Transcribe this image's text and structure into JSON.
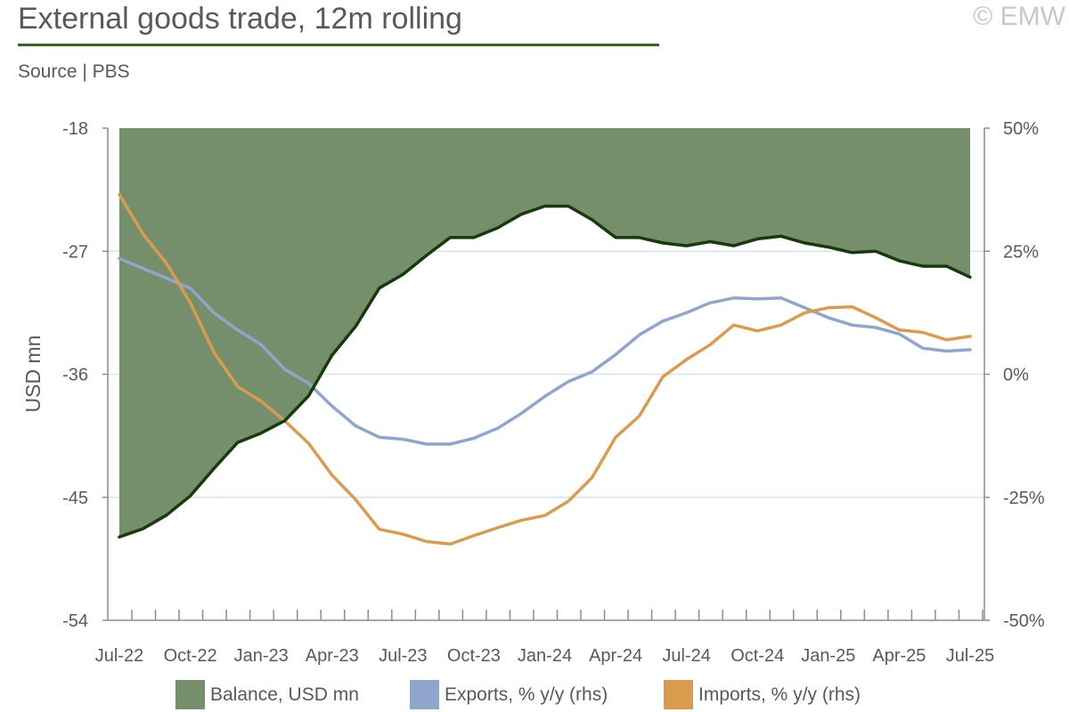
{
  "header": {
    "title": "External goods trade, 12m rolling",
    "copyright": "© EMW",
    "source": "Source | PBS"
  },
  "colors": {
    "balance_fill": "#758f6c",
    "balance_line": "#173a0d",
    "exports": "#8fa5cb",
    "imports": "#d99c4f",
    "grid": "#d6e4ec",
    "axis": "#8c8c8c",
    "title_rule": "#2e6b22"
  },
  "chart_data": {
    "type": "line",
    "title": "External goods trade, 12m rolling",
    "ylabel": "USD mn",
    "y_left_ticks": [
      "-18",
      "-27",
      "-36",
      "-45",
      "-54"
    ],
    "y_right_ticks": [
      "50%",
      "25%",
      "0%",
      "-25%",
      "-50%"
    ],
    "ylim_left": [
      -54,
      -18
    ],
    "ylim_right": [
      -50,
      50
    ],
    "x_tick_labels": [
      "Jul-22",
      "Oct-22",
      "Jan-23",
      "Apr-23",
      "Jul-23",
      "Oct-23",
      "Jan-24",
      "Apr-24",
      "Jul-24",
      "Oct-24",
      "Jan-25",
      "Apr-25",
      "Jul-25"
    ],
    "x": [
      "Jul-22",
      "Aug-22",
      "Sep-22",
      "Oct-22",
      "Nov-22",
      "Dec-22",
      "Jan-23",
      "Feb-23",
      "Mar-23",
      "Apr-23",
      "May-23",
      "Jun-23",
      "Jul-23",
      "Aug-23",
      "Sep-23",
      "Oct-23",
      "Nov-23",
      "Dec-23",
      "Jan-24",
      "Feb-24",
      "Mar-24",
      "Apr-24",
      "May-24",
      "Jun-24",
      "Jul-24",
      "Aug-24",
      "Sep-24",
      "Oct-24",
      "Nov-24",
      "Dec-24",
      "Jan-25",
      "Feb-25",
      "Mar-25",
      "Apr-25",
      "May-25",
      "Jun-25",
      "Jul-25"
    ],
    "grid": true,
    "legend_position": "bottom",
    "series": [
      {
        "name": "Balance, USD mn",
        "axis": "left",
        "style": "area",
        "values": [
          -47.9,
          -47.3,
          -46.3,
          -44.9,
          -42.9,
          -41.0,
          -40.3,
          -39.4,
          -37.6,
          -34.6,
          -32.5,
          -29.7,
          -28.7,
          -27.3,
          -26.0,
          -26.0,
          -25.3,
          -24.3,
          -23.7,
          -23.7,
          -24.7,
          -26.0,
          -26.0,
          -26.4,
          -26.6,
          -26.3,
          -26.6,
          -26.1,
          -25.9,
          -26.4,
          -26.7,
          -27.1,
          -27.0,
          -27.7,
          -28.1,
          -28.1,
          -28.9
        ]
      },
      {
        "name": "Exports, % y/y (rhs)",
        "axis": "right",
        "style": "line",
        "values": [
          23.5,
          21.5,
          19.5,
          17.5,
          12.5,
          9.0,
          6.0,
          1.0,
          -1.8,
          -6.5,
          -10.5,
          -12.8,
          -13.2,
          -14.2,
          -14.2,
          -13.0,
          -11.0,
          -8.0,
          -4.5,
          -1.5,
          0.5,
          4.0,
          8.0,
          10.8,
          12.5,
          14.5,
          15.5,
          15.3,
          15.5,
          13.5,
          11.5,
          10.0,
          9.5,
          8.2,
          5.3,
          4.7,
          5.0
        ]
      },
      {
        "name": "Imports, % y/y (rhs)",
        "axis": "right",
        "style": "line",
        "values": [
          36.5,
          28.5,
          22.5,
          14.5,
          4.5,
          -2.5,
          -5.5,
          -9.5,
          -14.0,
          -20.5,
          -25.5,
          -31.5,
          -32.5,
          -34.0,
          -34.5,
          -32.8,
          -31.2,
          -29.7,
          -28.7,
          -25.8,
          -21.0,
          -12.8,
          -8.5,
          -0.5,
          3.0,
          6.0,
          10.0,
          8.8,
          10.0,
          12.5,
          13.5,
          13.7,
          11.5,
          9.0,
          8.5,
          7.0,
          7.7
        ]
      }
    ]
  }
}
